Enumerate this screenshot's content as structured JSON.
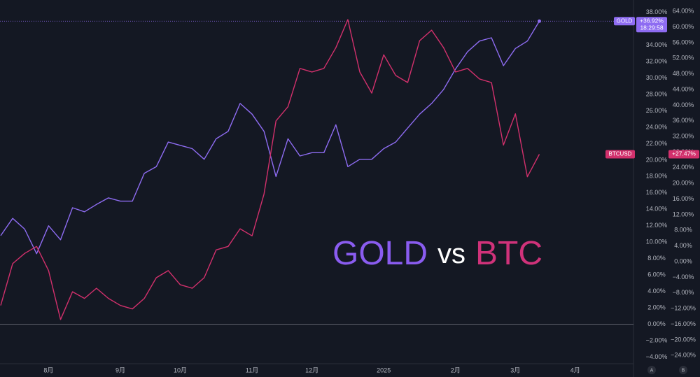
{
  "chart_data": {
    "type": "line",
    "title_words": [
      "GOLD",
      "vs",
      "BTC"
    ],
    "title_colors": [
      "#8a5cf0",
      "#ffffff",
      "#d0327a"
    ],
    "categories": [
      null,
      null,
      null,
      null,
      "8月",
      null,
      null,
      null,
      null,
      null,
      "9月",
      null,
      null,
      null,
      null,
      "10月",
      null,
      null,
      null,
      null,
      null,
      "11月",
      null,
      null,
      null,
      null,
      "12月",
      null,
      null,
      null,
      null,
      null,
      "2025",
      null,
      null,
      null,
      null,
      null,
      "2月",
      null,
      null,
      null,
      null,
      "3月",
      null,
      null,
      null,
      null,
      "4月"
    ],
    "series": [
      {
        "name": "GOLD",
        "color": "#8e6cf2",
        "axis": "y",
        "last_label": "+36.92%",
        "countdown": "18:29:58",
        "values": [
          10.8,
          12.9,
          11.6,
          8.6,
          12.0,
          10.3,
          14.2,
          13.7,
          14.6,
          15.4,
          15.0,
          15.0,
          18.4,
          19.2,
          22.2,
          21.8,
          21.4,
          20.1,
          22.6,
          23.5,
          26.9,
          25.6,
          23.5,
          18.0,
          22.6,
          20.5,
          20.9,
          20.9,
          24.3,
          19.2,
          20.1,
          20.1,
          21.4,
          22.2,
          23.9,
          25.6,
          26.9,
          28.6,
          31.1,
          33.2,
          34.5,
          34.9,
          31.5,
          33.6,
          34.5,
          36.92,
          null,
          null,
          null
        ]
      },
      {
        "name": "BTCUSD",
        "color": "#d2306c",
        "axis": "y2",
        "last_label": "+27.47%",
        "values": [
          -11.2,
          -0.5,
          2.1,
          3.9,
          -2.3,
          -14.8,
          -7.7,
          -9.4,
          -6.8,
          -9.4,
          -11.2,
          -12.1,
          -9.4,
          -4.1,
          -2.3,
          -5.9,
          -6.8,
          -4.1,
          3.0,
          3.9,
          8.4,
          6.6,
          17.3,
          36.0,
          39.6,
          49.4,
          48.5,
          49.4,
          54.7,
          61.9,
          48.5,
          43.1,
          52.9,
          47.6,
          45.8,
          56.5,
          59.2,
          54.7,
          48.5,
          49.4,
          46.7,
          45.8,
          29.8,
          37.8,
          21.7,
          27.47,
          null,
          null,
          null
        ]
      }
    ],
    "ylim": [
      -4.8,
      39.5
    ],
    "yticks": [
      {
        "value": 38,
        "label": "38.00%"
      },
      {
        "value": 36,
        "label": "36.00%"
      },
      {
        "value": 34,
        "label": "34.00%"
      },
      {
        "value": 32,
        "label": "32.00%"
      },
      {
        "value": 30,
        "label": "30.00%"
      },
      {
        "value": 28,
        "label": "28.00%"
      },
      {
        "value": 26,
        "label": "26.00%"
      },
      {
        "value": 24,
        "label": "24.00%"
      },
      {
        "value": 22,
        "label": "22.00%"
      },
      {
        "value": 20,
        "label": "20.00%"
      },
      {
        "value": 18,
        "label": "18.00%"
      },
      {
        "value": 16,
        "label": "16.00%"
      },
      {
        "value": 14,
        "label": "14.00%"
      },
      {
        "value": 12,
        "label": "12.00%"
      },
      {
        "value": 10,
        "label": "10.00%"
      },
      {
        "value": 8,
        "label": "8.00%"
      },
      {
        "value": 6,
        "label": "6.00%"
      },
      {
        "value": 4,
        "label": "4.00%"
      },
      {
        "value": 2,
        "label": "2.00%"
      },
      {
        "value": 0,
        "label": "0.00%"
      },
      {
        "value": -2,
        "label": "−2.00%"
      },
      {
        "value": -4,
        "label": "−4.00%"
      }
    ],
    "y2lim": [
      -26.1,
      66.9
    ],
    "y2ticks": [
      {
        "value": 64,
        "label": "64.00%"
      },
      {
        "value": 60,
        "label": "60.00%"
      },
      {
        "value": 56,
        "label": "56.00%"
      },
      {
        "value": 52,
        "label": "52.00%"
      },
      {
        "value": 48,
        "label": "48.00%"
      },
      {
        "value": 44,
        "label": "44.00%"
      },
      {
        "value": 40,
        "label": "40.00%"
      },
      {
        "value": 36,
        "label": "36.00%"
      },
      {
        "value": 32,
        "label": "32.00%"
      },
      {
        "value": 28,
        "label": "28.00%"
      },
      {
        "value": 24,
        "label": "24.00%"
      },
      {
        "value": 20,
        "label": "20.00%"
      },
      {
        "value": 16,
        "label": "16.00%"
      },
      {
        "value": 12,
        "label": "12.00%"
      },
      {
        "value": 8,
        "label": "8.00%"
      },
      {
        "value": 4,
        "label": "4.00%"
      },
      {
        "value": 0,
        "label": "0.00%"
      },
      {
        "value": -4,
        "label": "−4.00%"
      },
      {
        "value": -8,
        "label": "−8.00%"
      },
      {
        "value": -12,
        "label": "−12.00%"
      },
      {
        "value": -16,
        "label": "−16.00%"
      },
      {
        "value": -20,
        "label": "−20.00%"
      },
      {
        "value": -24,
        "label": "−24.00%"
      }
    ],
    "grid": false,
    "axis_buttons": [
      "A",
      "B"
    ]
  }
}
